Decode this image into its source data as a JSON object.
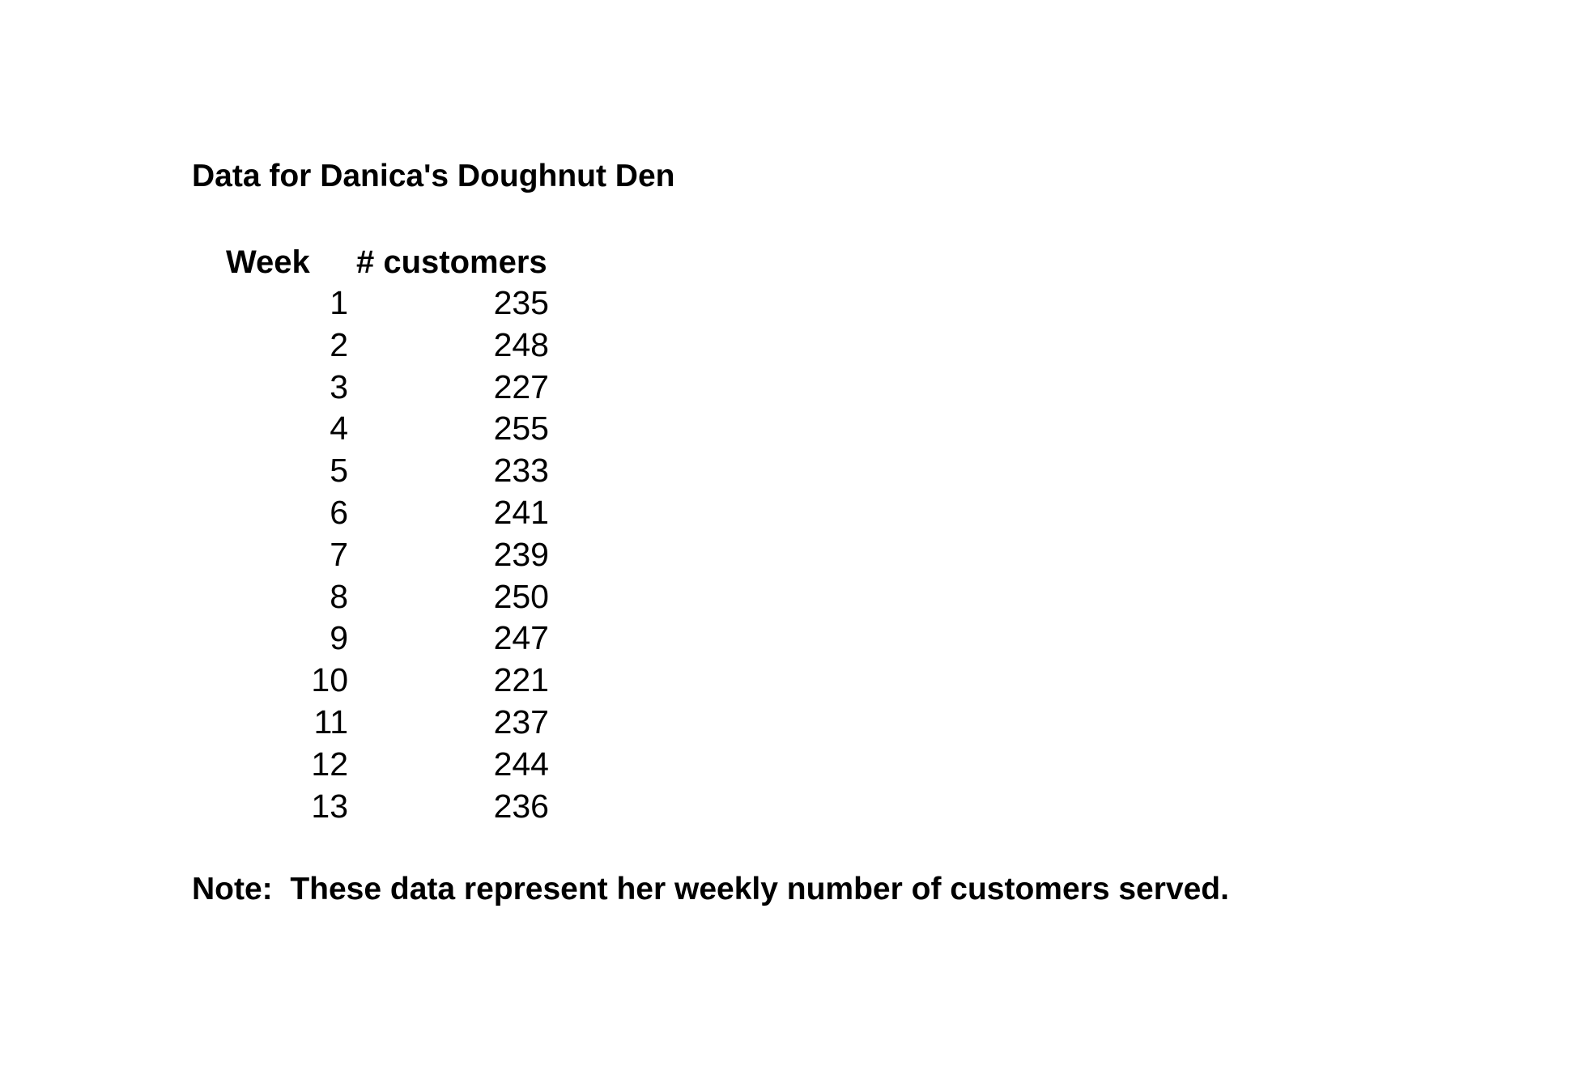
{
  "title": "Data for Danica's Doughnut Den",
  "table": {
    "headers": [
      "Week",
      "# customers"
    ],
    "rows": [
      {
        "week": "1",
        "customers": "235"
      },
      {
        "week": "2",
        "customers": "248"
      },
      {
        "week": "3",
        "customers": "227"
      },
      {
        "week": "4",
        "customers": "255"
      },
      {
        "week": "5",
        "customers": "233"
      },
      {
        "week": "6",
        "customers": "241"
      },
      {
        "week": "7",
        "customers": "239"
      },
      {
        "week": "8",
        "customers": "250"
      },
      {
        "week": "9",
        "customers": "247"
      },
      {
        "week": "10",
        "customers": "221"
      },
      {
        "week": "11",
        "customers": "237"
      },
      {
        "week": "12",
        "customers": "244"
      },
      {
        "week": "13",
        "customers": "236"
      }
    ]
  },
  "note": "Note:  These data represent her weekly number of customers served."
}
